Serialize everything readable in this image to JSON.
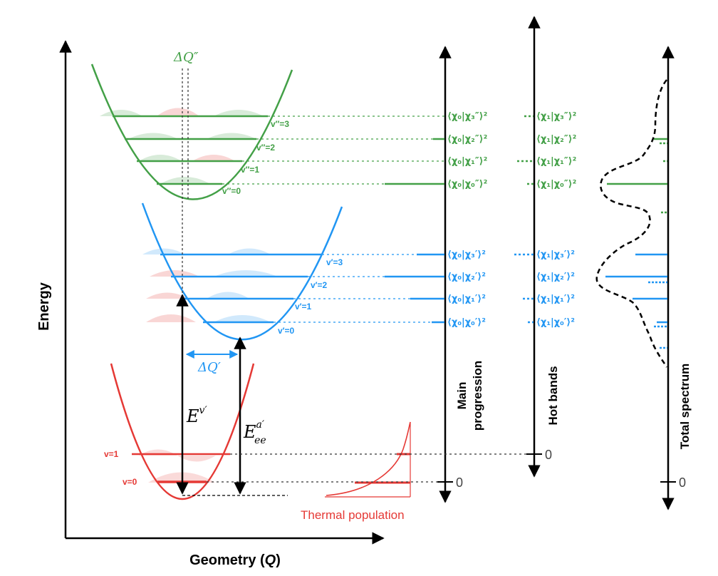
{
  "colors": {
    "ground": "#e53935",
    "excited": "#2196f3",
    "upper": "#43a047",
    "axis": "#000000",
    "guide": "#555555"
  },
  "axes": {
    "energy": "Energy",
    "geometry": "Geometry (Q)",
    "geometry_text": "Geometry (",
    "geometry_var": "Q",
    "geometry_close": ")"
  },
  "columns": {
    "main_line1": "Main",
    "main_line2": "progression",
    "hot": "Hot bands",
    "total": "Total spectrum"
  },
  "zero_labels": {
    "main": "0",
    "hot": "0",
    "total": "0"
  },
  "thermal_label": "Thermal population",
  "annotations": {
    "dq_upper": "ΔQ″",
    "dq_excited": "ΔQ′"
  },
  "upper_state": {
    "levels": [
      "v″=3",
      "v″=2",
      "v″=1",
      "v″=0"
    ],
    "main_fc": [
      "⟨χ₀|χ₃″⟩²",
      "⟨χ₀|χ₂″⟩²",
      "⟨χ₀|χ₁″⟩²",
      "⟨χ₀|χ₀″⟩²"
    ],
    "hot_fc": [
      "⟨χ₁|χ₃″⟩²",
      "⟨χ₁|χ₂″⟩²",
      "⟨χ₁|χ₁″⟩²",
      "⟨χ₁|χ₀″⟩²"
    ]
  },
  "excited_state": {
    "levels": [
      "v′=3",
      "v′=2",
      "v′=1",
      "v′=0"
    ],
    "main_fc": [
      "⟨χ₀|χ₃′⟩²",
      "⟨χ₀|χ₂′⟩²",
      "⟨χ₀|χ₁′⟩²",
      "⟨χ₀|χ₀′⟩²"
    ],
    "hot_fc": [
      "⟨χ₁|χ₃′⟩²",
      "⟨χ₁|χ₂′⟩²",
      "⟨χ₁|χ₁′⟩²",
      "⟨χ₁|χ₀′⟩²"
    ]
  },
  "ground_state": {
    "levels": [
      "v=1",
      "v=0"
    ]
  }
}
